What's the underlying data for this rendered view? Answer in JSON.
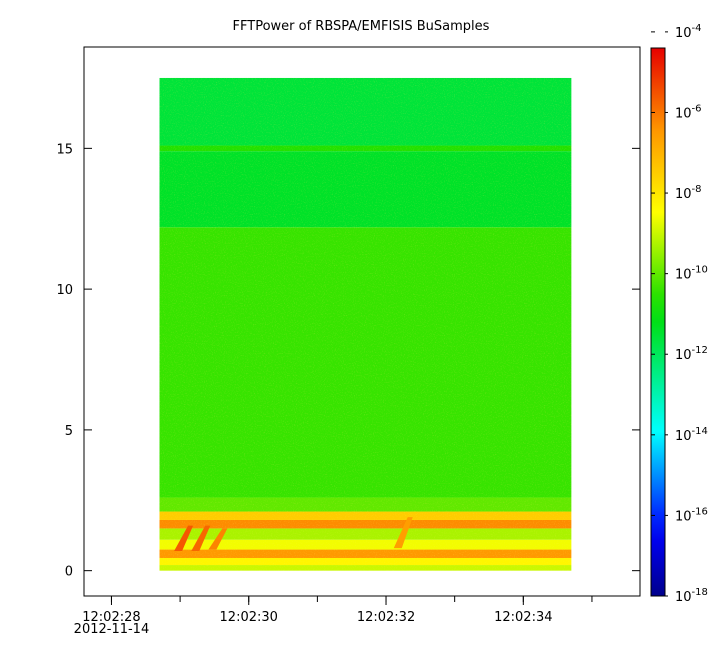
{
  "chart_data": {
    "type": "heatmap",
    "title": "FFTPower of RBSPA/EMFISIS  BuSamples",
    "xlabel": "",
    "ylabel": "",
    "x": {
      "ticks": [
        {
          "value": 0,
          "label": "12:02:28",
          "sublabel": "2012-11-14"
        },
        {
          "value": 2,
          "label": "12:02:30"
        },
        {
          "value": 4,
          "label": "12:02:32"
        },
        {
          "value": 6,
          "label": "12:02:34"
        }
      ],
      "range": [
        -0.4,
        7.7
      ],
      "data_range": [
        0.7,
        6.7
      ],
      "minor_every": 1
    },
    "y": {
      "ticks": [
        {
          "value": 0,
          "label": "0"
        },
        {
          "value": 5,
          "label": "5"
        },
        {
          "value": 10,
          "label": "10"
        },
        {
          "value": 15,
          "label": "15"
        }
      ],
      "range": [
        -0.9,
        18.6
      ],
      "data_range": [
        0.0,
        17.5
      ]
    },
    "colorbar": {
      "scale": "log",
      "range_exp": [
        -18,
        -4.4
      ],
      "colormap": "rainbow",
      "ticks": [
        {
          "exp": -4,
          "label": "10",
          "sup": "-4"
        },
        {
          "exp": -6,
          "label": "10",
          "sup": "-6"
        },
        {
          "exp": -8,
          "label": "10",
          "sup": "-8"
        },
        {
          "exp": -10,
          "label": "10",
          "sup": "-10"
        },
        {
          "exp": -12,
          "label": "10",
          "sup": "-12"
        },
        {
          "exp": -14,
          "label": "10",
          "sup": "-14"
        },
        {
          "exp": -16,
          "label": "10",
          "sup": "-16"
        },
        {
          "exp": -18,
          "label": "10",
          "sup": "-18"
        }
      ]
    },
    "bands": [
      {
        "y0": 0.0,
        "y1": 0.2,
        "log_power": -9.0
      },
      {
        "y0": 0.2,
        "y1": 0.45,
        "log_power": -8.3
      },
      {
        "y0": 0.45,
        "y1": 0.75,
        "log_power": -6.5
      },
      {
        "y0": 0.75,
        "y1": 1.1,
        "log_power": -8.6
      },
      {
        "y0": 1.1,
        "y1": 1.5,
        "log_power": -9.3
      },
      {
        "y0": 1.5,
        "y1": 1.8,
        "log_power": -6.3
      },
      {
        "y0": 1.8,
        "y1": 2.1,
        "log_power": -7.5
      },
      {
        "y0": 2.1,
        "y1": 2.6,
        "log_power": -10.0
      },
      {
        "y0": 2.6,
        "y1": 12.2,
        "log_power": -10.4
      },
      {
        "y0": 12.2,
        "y1": 14.9,
        "log_power": -11.4
      },
      {
        "y0": 14.9,
        "y1": 15.1,
        "log_power": -10.6
      },
      {
        "y0": 15.1,
        "y1": 17.5,
        "log_power": -11.6
      }
    ],
    "bursts": [
      {
        "x": 1.0,
        "y0": 0.7,
        "y1": 1.6,
        "log_power": -5.6
      },
      {
        "x": 1.25,
        "y0": 0.7,
        "y1": 1.6,
        "log_power": -5.8
      },
      {
        "x": 1.5,
        "y0": 0.75,
        "y1": 1.5,
        "log_power": -6.2
      },
      {
        "x": 4.2,
        "y0": 0.8,
        "y1": 1.9,
        "log_power": -6.6
      }
    ],
    "grid": false,
    "legend": "none"
  }
}
